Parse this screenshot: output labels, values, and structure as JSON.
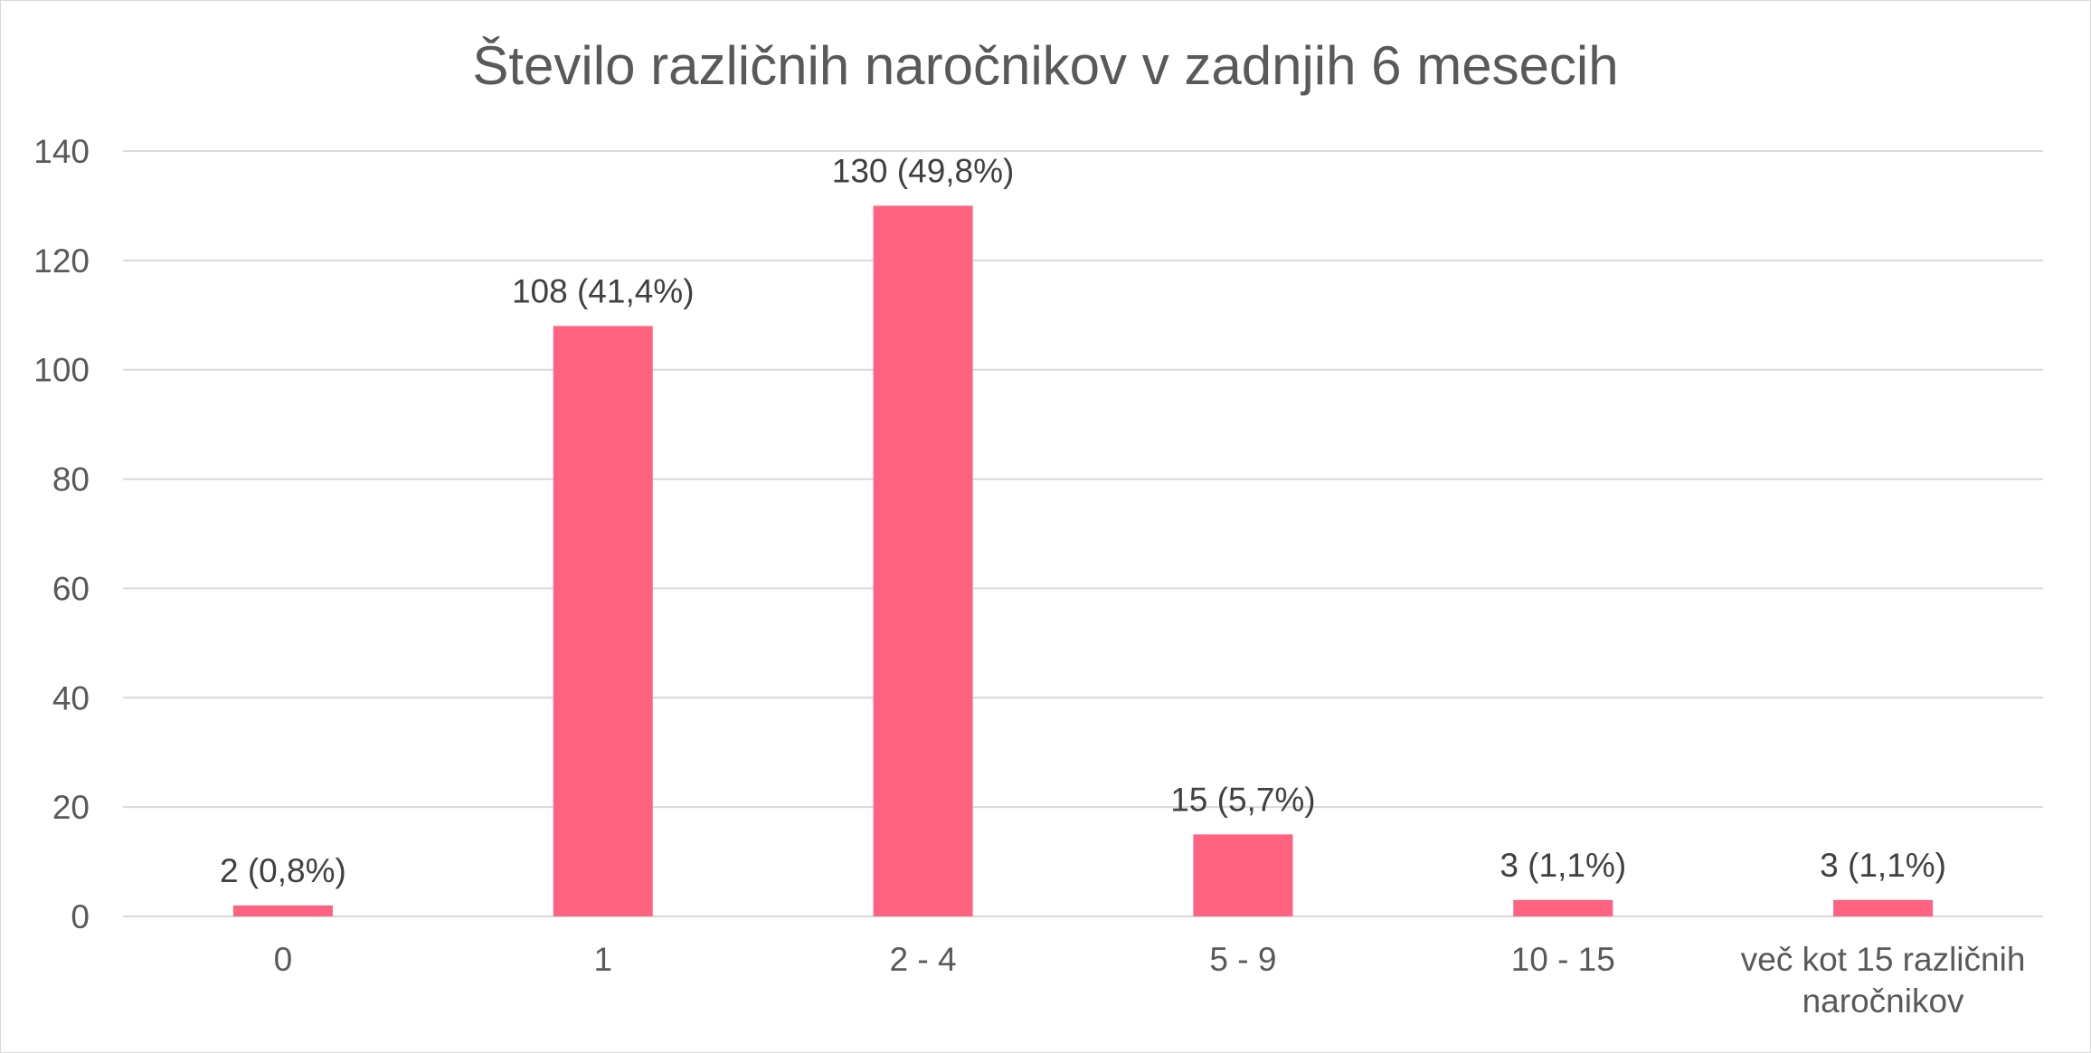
{
  "chart_data": {
    "type": "bar",
    "title": "Število različnih naročnikov v zadnjih 6 mesecih",
    "xlabel": "",
    "ylabel": "",
    "categories": [
      [
        "0"
      ],
      [
        "1"
      ],
      [
        "2 - 4"
      ],
      [
        "5 - 9"
      ],
      [
        "10 - 15"
      ],
      [
        "več kot 15 različnih",
        "naročnikov"
      ]
    ],
    "values": [
      2,
      108,
      130,
      15,
      3,
      3
    ],
    "data_labels": [
      "2 (0,8%)",
      "108 (41,4%)",
      "130 (49,8%)",
      "15 (5,7%)",
      "3 (1,1%)",
      "3 (1,1%)"
    ],
    "ylim": [
      0,
      140
    ],
    "yticks": [
      "0",
      "20",
      "40",
      "60",
      "80",
      "100",
      "120",
      "140"
    ],
    "grid": true,
    "legend": "none",
    "bar_color": "#ff6380"
  }
}
